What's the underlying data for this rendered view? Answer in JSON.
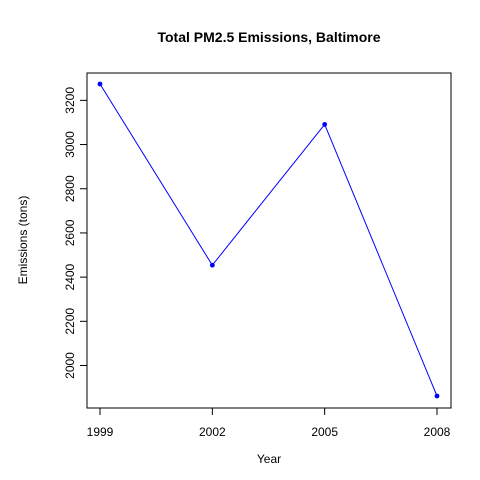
{
  "chart_data": {
    "type": "line",
    "title": "Total PM2.5 Emissions, Baltimore",
    "xlabel": "Year",
    "ylabel": "Emissions (tons)",
    "x": [
      1999,
      2002,
      2005,
      2008
    ],
    "series": [
      {
        "values": [
          3274,
          2454,
          3091,
          1862
        ]
      }
    ],
    "xticks": [
      "1999",
      "2002",
      "2005",
      "2008"
    ],
    "yticks": [
      "2000",
      "2200",
      "2400",
      "2600",
      "2800",
      "3000",
      "3200"
    ],
    "xlim": [
      1999,
      2008
    ],
    "ylim": [
      1862,
      3274
    ],
    "grid": false,
    "line_color": "#0000ff",
    "point_color": "#0000ff"
  }
}
